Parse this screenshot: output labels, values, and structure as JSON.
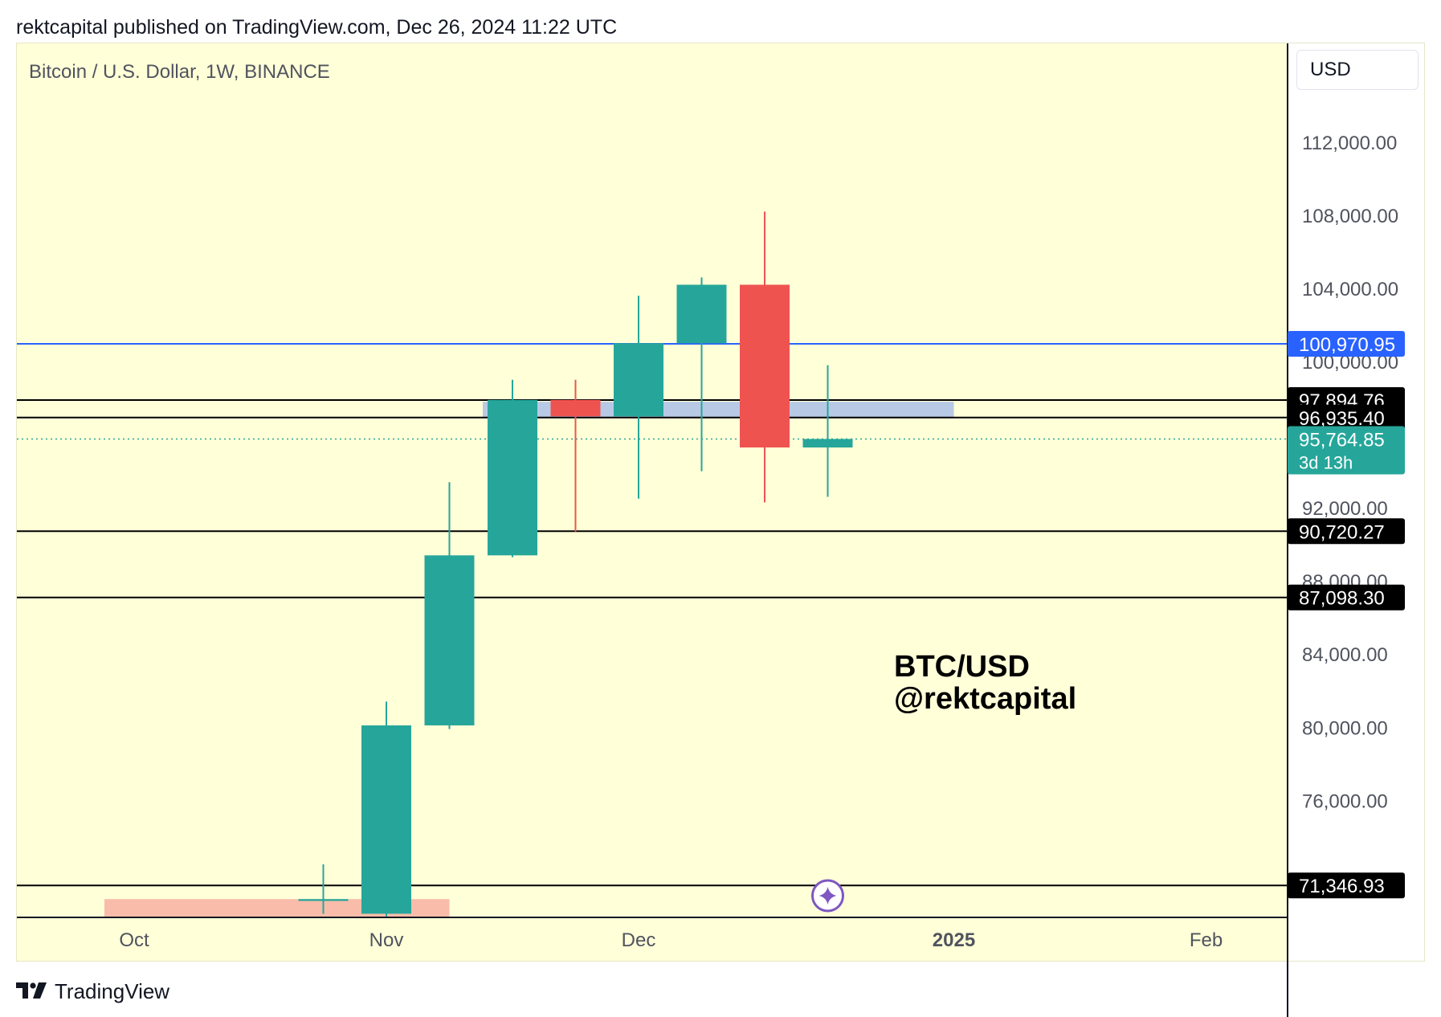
{
  "header": {
    "published_line": "rektcapital published on TradingView.com, Dec 26, 2024 11:22 UTC"
  },
  "footer": {
    "brand": "TradingView",
    "logo_icon": "tradingview-logo-icon"
  },
  "chart_data": {
    "type": "candlestick",
    "title": "Bitcoin / U.S. Dollar, 1W, BINANCE",
    "currency": "USD",
    "ylim": [
      69600,
      117400
    ],
    "y_ticks": [
      {
        "value": 112000,
        "label": "112,000.00"
      },
      {
        "value": 108000,
        "label": "108,000.00"
      },
      {
        "value": 104000,
        "label": "104,000.00"
      },
      {
        "value": 100000,
        "label": "100,000.00"
      },
      {
        "value": 92000,
        "label": "92,000.00"
      },
      {
        "value": 88000,
        "label": "88,000.00"
      },
      {
        "value": 84000,
        "label": "84,000.00"
      },
      {
        "value": 80000,
        "label": "80,000.00"
      },
      {
        "value": 76000,
        "label": "76,000.00"
      }
    ],
    "x_ticks": [
      {
        "week": 0,
        "label": "Oct",
        "bold": false
      },
      {
        "week": 4,
        "label": "Nov",
        "bold": false
      },
      {
        "week": 8,
        "label": "Dec",
        "bold": false
      },
      {
        "week": 13,
        "label": "2025",
        "bold": true
      },
      {
        "week": 17,
        "label": "Feb",
        "bold": false
      }
    ],
    "candles": [
      {
        "week": 3,
        "open": 70500,
        "high": 72500,
        "low": 69800,
        "close": 70600
      },
      {
        "week": 4,
        "open": 69800,
        "high": 81400,
        "low": 69600,
        "close": 80100
      },
      {
        "week": 5,
        "open": 80100,
        "high": 93400,
        "low": 79900,
        "close": 89400
      },
      {
        "week": 6,
        "open": 89400,
        "high": 99000,
        "low": 89300,
        "close": 97900
      },
      {
        "week": 7,
        "open": 97900,
        "high": 99000,
        "low": 90700,
        "close": 97000
      },
      {
        "week": 8,
        "open": 97000,
        "high": 103600,
        "low": 92500,
        "close": 101000
      },
      {
        "week": 9,
        "open": 101000,
        "high": 104600,
        "low": 94000,
        "close": 104200
      },
      {
        "week": 10,
        "open": 104200,
        "high": 108200,
        "low": 92300,
        "close": 95300
      },
      {
        "week": 11,
        "open": 95300,
        "high": 99800,
        "low": 92600,
        "close": 95765
      }
    ],
    "colors": {
      "up": "#26a69a",
      "down": "#ef5350",
      "background": "#ffffd8",
      "blue_line": "#2962ff"
    },
    "horizontal_levels": [
      {
        "value": 100970.95,
        "label": "100,970.95",
        "color": "#2962ff",
        "style": "solid"
      },
      {
        "value": 97894.76,
        "label": "97,894.76",
        "color": "#000000",
        "style": "solid"
      },
      {
        "value": 96935.4,
        "label": "96,935.40",
        "color": "#000000",
        "style": "solid"
      },
      {
        "value": 90720.27,
        "label": "90,720.27",
        "color": "#000000",
        "style": "solid"
      },
      {
        "value": 87098.3,
        "label": "87,098.30",
        "color": "#000000",
        "style": "solid"
      },
      {
        "value": 71346.93,
        "label": "71,346.93",
        "color": "#000000",
        "style": "solid"
      }
    ],
    "current_price": {
      "value": 95764.85,
      "label": "95,764.85",
      "countdown": "3d 13h",
      "color": "#26a69a"
    },
    "zones": [
      {
        "week_start": 6,
        "week_end": 13,
        "low": 96900,
        "high": 97800,
        "color": "#b8c9e6"
      },
      {
        "week_start": 0,
        "week_end": 5,
        "low": 69600,
        "high": 70600,
        "color": "#f9bcaa"
      }
    ],
    "annotation": {
      "line1": "BTC/USD",
      "line2": "@rektcapital"
    },
    "marker": {
      "week": 11,
      "icon": "sparkle-icon",
      "color": "#7e57c2"
    }
  }
}
